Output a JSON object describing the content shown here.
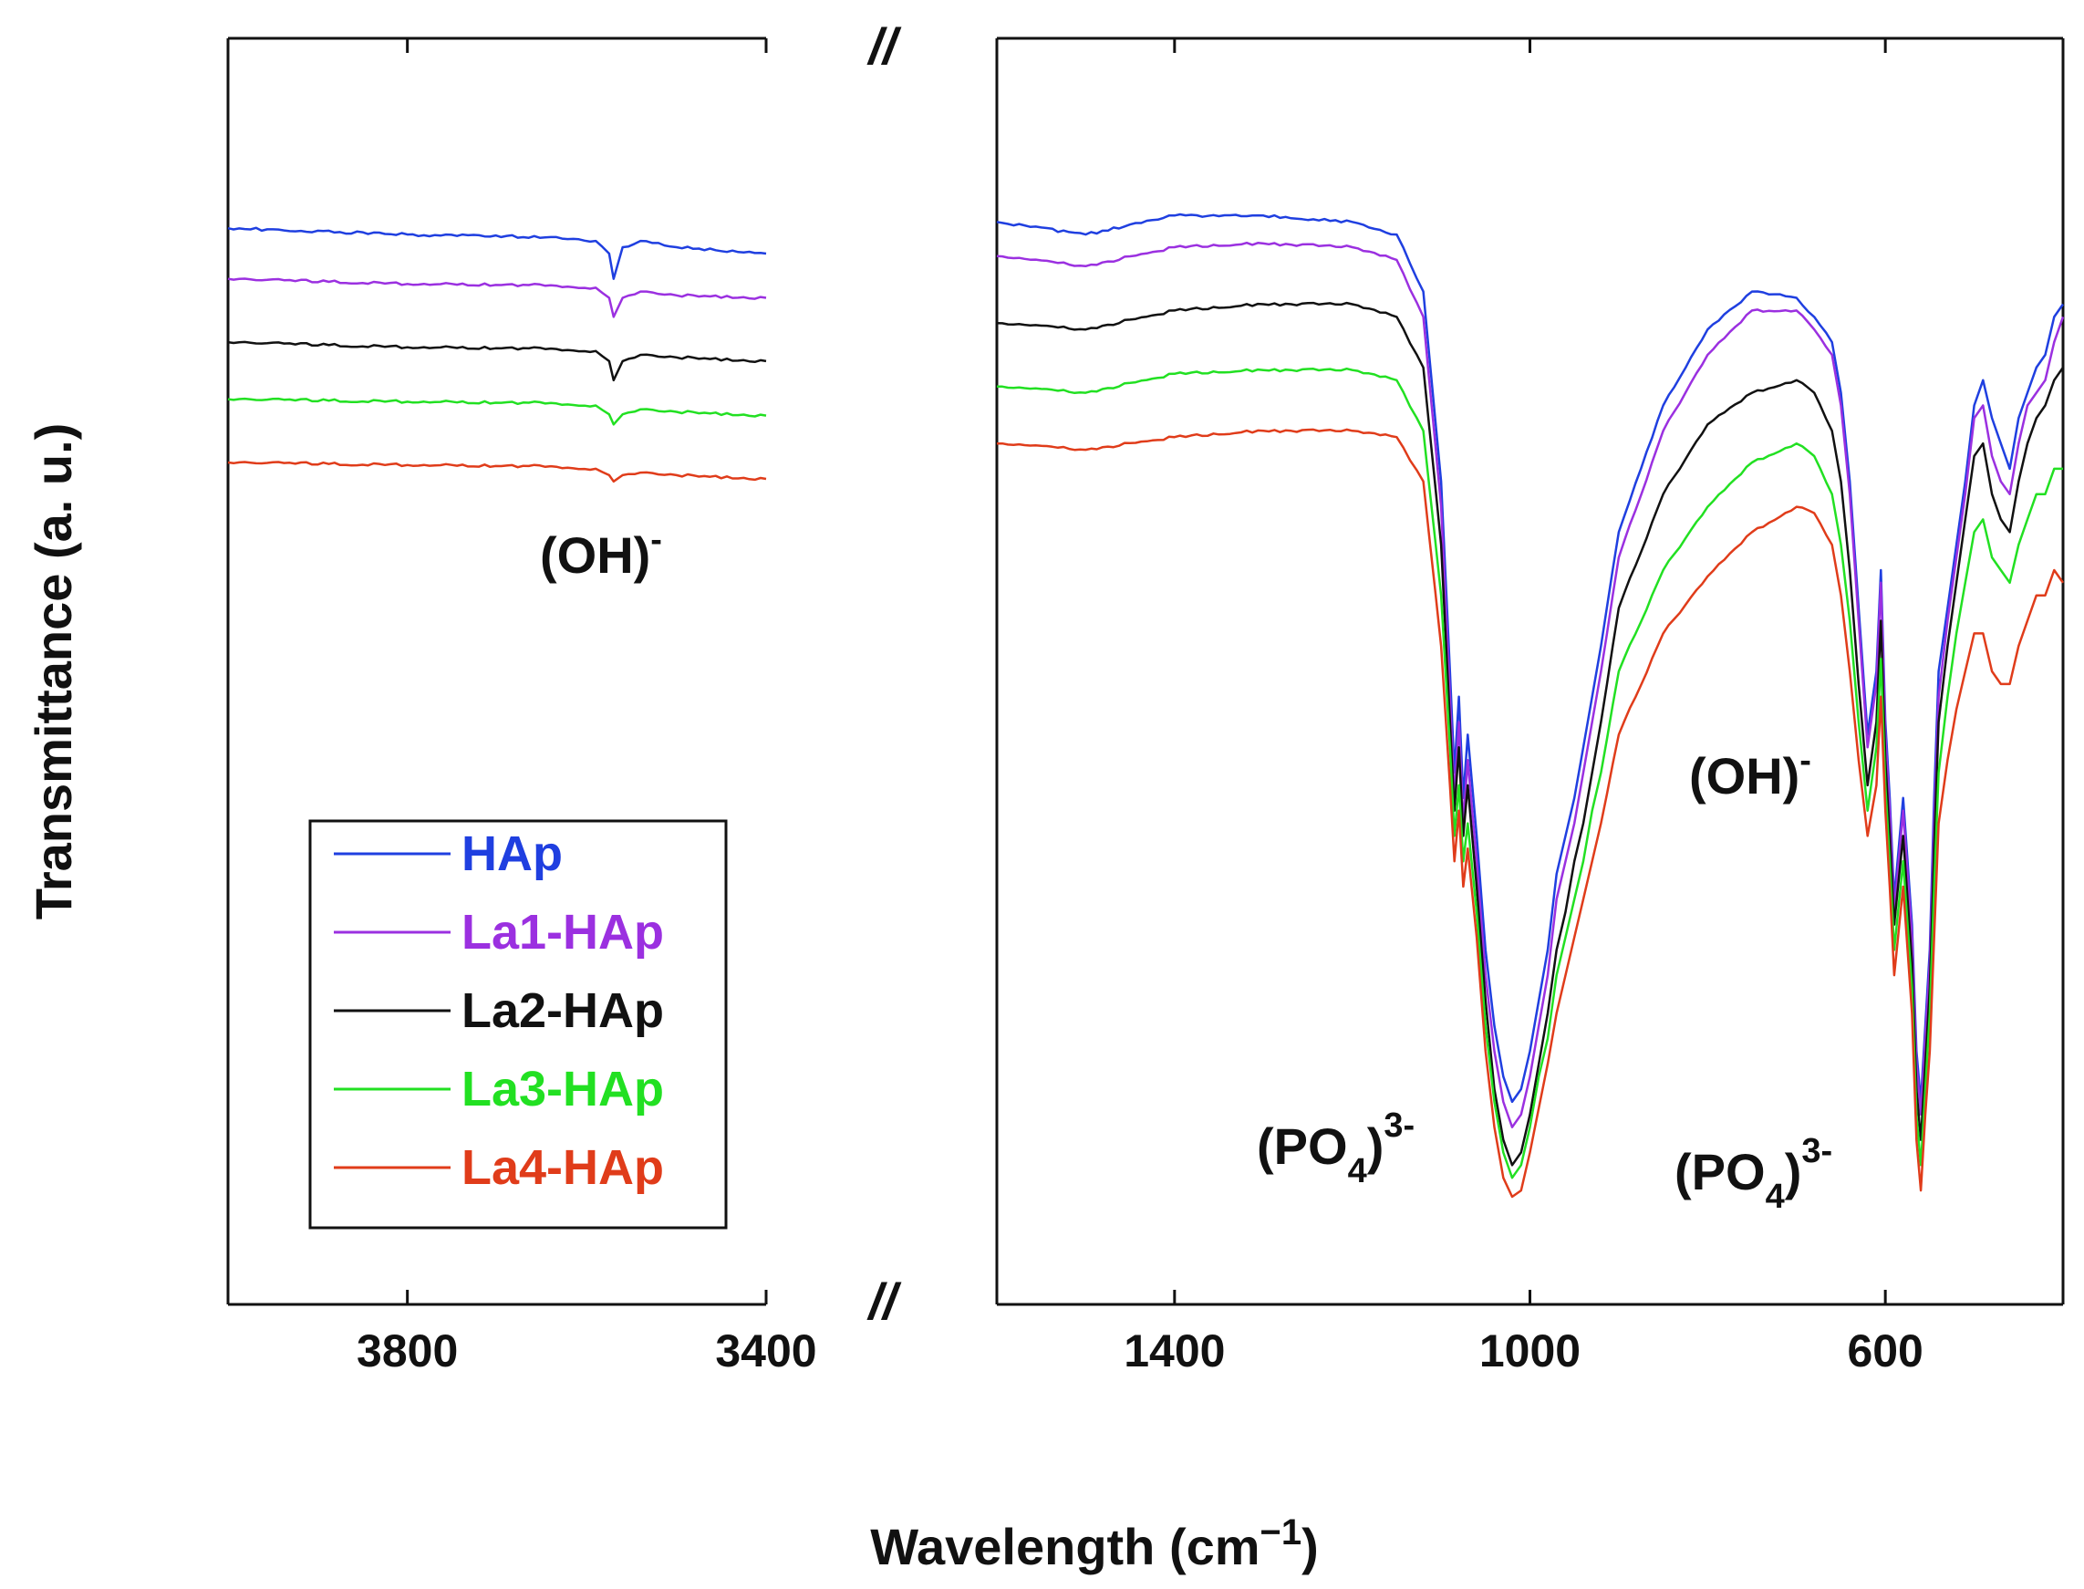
{
  "chart_data": {
    "type": "line",
    "title": "",
    "xlabel": "Wavelength (cm",
    "xlabel_sup": "−1",
    "xlabel_close": ")",
    "ylabel": "Transmittance (a. u.)",
    "axis_break_mark": "//",
    "panels": [
      {
        "name": "left",
        "xlim": [
          4000,
          3400
        ],
        "ticks": [
          3800,
          3400
        ],
        "tick_labels": [
          "3800",
          "3400"
        ]
      },
      {
        "name": "right",
        "xlim": [
          1600,
          400
        ],
        "ticks": [
          1400,
          1000,
          600
        ],
        "tick_labels": [
          "1400",
          "1000",
          "600"
        ]
      }
    ],
    "ylim": [
      0,
      100
    ],
    "series": [
      {
        "name": "HAp",
        "color": "#1f3fe0",
        "left": {
          "x": [
            4000,
            3800,
            3640,
            3590,
            3575,
            3570,
            3560,
            3540,
            3500,
            3400
          ],
          "y": [
            85,
            84.5,
            84.3,
            84,
            83,
            81,
            83.5,
            84,
            83.5,
            83
          ]
        },
        "right": {
          "x": [
            1600,
            1500,
            1400,
            1300,
            1200,
            1150,
            1120,
            1100,
            1090,
            1085,
            1080,
            1075,
            1070,
            1060,
            1050,
            1040,
            1030,
            1020,
            1010,
            1000,
            990,
            980,
            970,
            960,
            950,
            940,
            930,
            920,
            900,
            850,
            800,
            750,
            700,
            680,
            660,
            650,
            640,
            630,
            620,
            610,
            605,
            600,
            595,
            590,
            580,
            570,
            565,
            560,
            555,
            550,
            545,
            540,
            530,
            520,
            510,
            500,
            490,
            480,
            470,
            460,
            450,
            440,
            430,
            420,
            410,
            400
          ],
          "y": [
            85.5,
            84.5,
            86,
            86,
            85.5,
            84.5,
            80,
            65,
            50,
            42,
            48,
            40,
            45,
            37,
            28,
            22,
            18,
            16,
            17,
            20,
            24,
            28,
            34,
            37,
            40,
            44,
            48,
            52,
            61,
            71,
            77,
            80,
            79.5,
            78,
            76,
            72,
            65,
            55,
            45,
            50,
            58,
            46,
            40,
            32,
            40,
            30,
            20,
            16,
            22,
            28,
            40,
            50,
            55,
            60,
            65,
            71,
            73,
            70,
            68,
            66,
            70,
            72,
            74,
            75,
            78,
            79
          ]
        }
      },
      {
        "name": "La1-HAp",
        "color": "#9b30e0",
        "left": {
          "x": [
            4000,
            3800,
            3640,
            3590,
            3575,
            3570,
            3560,
            3540,
            3500,
            3400
          ],
          "y": [
            81,
            80.6,
            80.5,
            80.3,
            79.5,
            78,
            79.5,
            80,
            79.7,
            79.5
          ]
        },
        "right": {
          "x": [
            1600,
            1500,
            1400,
            1300,
            1200,
            1150,
            1120,
            1100,
            1090,
            1085,
            1080,
            1075,
            1070,
            1060,
            1050,
            1040,
            1030,
            1020,
            1010,
            1000,
            990,
            980,
            970,
            960,
            950,
            940,
            930,
            920,
            900,
            850,
            800,
            750,
            700,
            680,
            660,
            650,
            640,
            630,
            620,
            610,
            605,
            600,
            595,
            590,
            580,
            570,
            565,
            560,
            555,
            550,
            545,
            540,
            530,
            520,
            510,
            500,
            490,
            480,
            470,
            460,
            450,
            440,
            430,
            420,
            410,
            400
          ],
          "y": [
            82.8,
            82,
            83.5,
            83.8,
            83.5,
            82.5,
            78,
            63,
            48,
            40,
            46,
            38,
            43,
            35,
            26,
            20,
            16,
            14,
            15,
            18,
            22,
            26,
            32,
            35,
            38,
            42,
            46,
            50,
            59,
            69,
            75,
            78.5,
            78.5,
            77,
            75,
            71,
            64,
            54,
            44,
            49,
            57,
            45,
            39,
            31,
            39,
            29,
            19,
            15,
            21,
            27,
            38,
            48,
            54,
            59,
            64,
            70,
            71,
            67,
            65,
            64,
            68,
            71,
            72,
            73,
            76,
            78
          ]
        }
      },
      {
        "name": "La2-HAp",
        "color": "#111111",
        "left": {
          "x": [
            4000,
            3800,
            3640,
            3590,
            3575,
            3570,
            3560,
            3540,
            3500,
            3400
          ],
          "y": [
            76,
            75.6,
            75.5,
            75.3,
            74.5,
            73,
            74.5,
            75,
            74.8,
            74.5
          ]
        },
        "right": {
          "x": [
            1600,
            1500,
            1400,
            1300,
            1200,
            1150,
            1120,
            1100,
            1090,
            1085,
            1080,
            1075,
            1070,
            1060,
            1050,
            1040,
            1030,
            1020,
            1010,
            1000,
            990,
            980,
            970,
            960,
            950,
            940,
            930,
            920,
            900,
            850,
            800,
            750,
            700,
            680,
            660,
            650,
            640,
            630,
            620,
            610,
            605,
            600,
            595,
            590,
            580,
            570,
            565,
            560,
            555,
            550,
            545,
            540,
            530,
            520,
            510,
            500,
            490,
            480,
            470,
            460,
            450,
            440,
            430,
            420,
            410,
            400
          ],
          "y": [
            77.5,
            77,
            78.5,
            79,
            79,
            78,
            74,
            60,
            46,
            39,
            44,
            37,
            41,
            33,
            24,
            17,
            13,
            11,
            12,
            15,
            19,
            23,
            28,
            31,
            35,
            38,
            42,
            46,
            55,
            64,
            69.5,
            72,
            73,
            72,
            69,
            65,
            58,
            49,
            41,
            46,
            54,
            43,
            37,
            30,
            37,
            27,
            17,
            13,
            19,
            25,
            36,
            46,
            52,
            57,
            62,
            67,
            68,
            64,
            62,
            61,
            65,
            68,
            70,
            71,
            73,
            74
          ]
        }
      },
      {
        "name": "La3-HAp",
        "color": "#22e022",
        "left": {
          "x": [
            4000,
            3800,
            3640,
            3590,
            3575,
            3570,
            3560,
            3540,
            3500,
            3400
          ],
          "y": [
            71.5,
            71.3,
            71.2,
            71,
            70.3,
            69.5,
            70.3,
            70.7,
            70.5,
            70.2
          ]
        },
        "right": {
          "x": [
            1600,
            1500,
            1400,
            1300,
            1200,
            1150,
            1120,
            1100,
            1090,
            1085,
            1080,
            1075,
            1070,
            1060,
            1050,
            1040,
            1030,
            1020,
            1010,
            1000,
            990,
            980,
            970,
            960,
            950,
            940,
            930,
            920,
            900,
            850,
            800,
            750,
            700,
            680,
            660,
            650,
            640,
            630,
            620,
            610,
            605,
            600,
            595,
            590,
            580,
            570,
            565,
            560,
            555,
            550,
            545,
            540,
            530,
            520,
            510,
            500,
            490,
            480,
            470,
            460,
            450,
            440,
            430,
            420,
            410,
            400
          ],
          "y": [
            72.5,
            72,
            73.5,
            73.8,
            73.8,
            73,
            69,
            56,
            44,
            37,
            41,
            35,
            38,
            31,
            22,
            16,
            12,
            10,
            11,
            14,
            18,
            21,
            26,
            29,
            32,
            35,
            39,
            42,
            50,
            58,
            63,
            66.5,
            68,
            67,
            64,
            60,
            54,
            46,
            39,
            44,
            51,
            41,
            35,
            28,
            35,
            25,
            15,
            11,
            17,
            23,
            33,
            42,
            48,
            53,
            57,
            61,
            62,
            59,
            58,
            57,
            60,
            62,
            64,
            64,
            66,
            66
          ]
        }
      },
      {
        "name": "La4-HAp",
        "color": "#e03c1a",
        "left": {
          "x": [
            4000,
            3800,
            3640,
            3590,
            3575,
            3570,
            3560,
            3540,
            3500,
            3400
          ],
          "y": [
            66.5,
            66.3,
            66.2,
            66,
            65.5,
            65,
            65.5,
            65.7,
            65.5,
            65.2
          ]
        },
        "right": {
          "x": [
            1600,
            1500,
            1400,
            1300,
            1200,
            1150,
            1120,
            1100,
            1090,
            1085,
            1080,
            1075,
            1070,
            1060,
            1050,
            1040,
            1030,
            1020,
            1010,
            1000,
            990,
            980,
            970,
            960,
            950,
            940,
            930,
            920,
            900,
            850,
            800,
            750,
            700,
            680,
            660,
            650,
            640,
            630,
            620,
            610,
            605,
            600,
            595,
            590,
            580,
            570,
            565,
            560,
            555,
            550,
            545,
            540,
            530,
            520,
            510,
            500,
            490,
            480,
            470,
            460,
            450,
            440,
            430,
            420,
            410,
            400
          ],
          "y": [
            68,
            67.5,
            68.5,
            69,
            69,
            68.5,
            65,
            52,
            41,
            35,
            39,
            33,
            36,
            29,
            20,
            14,
            10,
            8.5,
            9,
            12,
            15.5,
            19,
            23,
            26,
            29,
            32,
            35,
            38,
            45,
            53,
            57.5,
            61,
            63,
            62.5,
            60,
            56,
            50,
            43,
            37,
            41,
            48,
            39,
            33,
            26,
            33,
            23,
            13,
            9,
            15,
            20,
            29,
            38,
            43,
            47,
            50,
            53,
            53,
            50,
            49,
            49,
            52,
            54,
            56,
            56,
            58,
            57
          ]
        }
      }
    ],
    "legend": {
      "position": "bottom-left of left panel",
      "entries": [
        "HAp",
        "La1-HAp",
        "La2-HAp",
        "La3-HAp",
        "La4-HAp"
      ]
    },
    "annotations": [
      {
        "id": "oh-left",
        "text": "(OH)",
        "sup": "-"
      },
      {
        "id": "oh-right",
        "text": "(OH)",
        "sup": "-"
      },
      {
        "id": "po4-left",
        "text": "(PO",
        "sub": "4",
        "close": ")",
        "sup": "3-"
      },
      {
        "id": "po4-right",
        "text": "(PO",
        "sub": "4",
        "close": ")",
        "sup": "3-"
      }
    ]
  }
}
